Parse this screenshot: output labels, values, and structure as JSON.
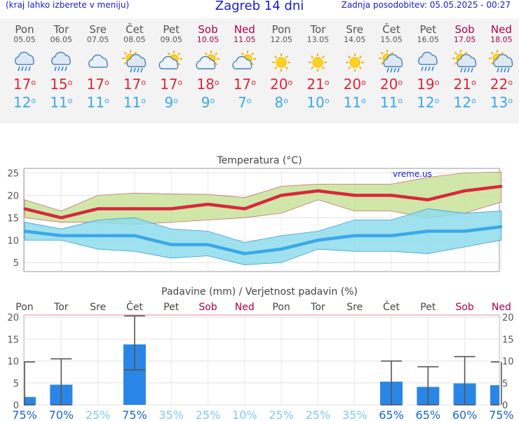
{
  "header": {
    "menu_hint": "(kraj lahko izberete v meniju)",
    "title": "Zagreb 14 dni",
    "updated": "Zadnja posodobitev: 05.05.2025 - 00:27"
  },
  "days": [
    {
      "name": "Pon",
      "date": "05.05",
      "weekend": false,
      "icon": "rain-cloud-icon",
      "max": "17",
      "min": "12"
    },
    {
      "name": "Tor",
      "date": "06.05",
      "weekend": false,
      "icon": "rain-cloud-icon",
      "max": "15",
      "min": "11"
    },
    {
      "name": "Sre",
      "date": "07.05",
      "weekend": false,
      "icon": "cloud-icon",
      "max": "17",
      "min": "11"
    },
    {
      "name": "Čet",
      "date": "08.05",
      "weekend": false,
      "icon": "sun-rain-cloud-icon",
      "max": "17",
      "min": "11"
    },
    {
      "name": "Pet",
      "date": "09.05",
      "weekend": false,
      "icon": "partly-cloudy-icon",
      "max": "17",
      "min": "9"
    },
    {
      "name": "Sob",
      "date": "10.05",
      "weekend": true,
      "icon": "partly-cloudy-icon",
      "max": "18",
      "min": "9"
    },
    {
      "name": "Ned",
      "date": "11.05",
      "weekend": true,
      "icon": "partly-cloudy-icon",
      "max": "17",
      "min": "7"
    },
    {
      "name": "Pon",
      "date": "12.05",
      "weekend": false,
      "icon": "sun-icon",
      "max": "20",
      "min": "8"
    },
    {
      "name": "Tor",
      "date": "13.05",
      "weekend": false,
      "icon": "sun-icon",
      "max": "21",
      "min": "10"
    },
    {
      "name": "Sre",
      "date": "14.05",
      "weekend": false,
      "icon": "sun-icon",
      "max": "20",
      "min": "11"
    },
    {
      "name": "Čet",
      "date": "15.05",
      "weekend": false,
      "icon": "sun-rain-cloud-icon",
      "max": "20",
      "min": "11"
    },
    {
      "name": "Pet",
      "date": "16.05",
      "weekend": false,
      "icon": "rain-cloud-icon",
      "max": "19",
      "min": "12"
    },
    {
      "name": "Sob",
      "date": "17.05",
      "weekend": true,
      "icon": "sun-rain-cloud-icon",
      "max": "21",
      "min": "12"
    },
    {
      "name": "Ned",
      "date": "18.05",
      "weekend": true,
      "icon": "sun-rain-cloud-icon",
      "max": "22",
      "min": "13"
    }
  ],
  "colors": {
    "max": "#d8283c",
    "max_band": "#c8e39a",
    "min": "#3aa8e8",
    "min_band": "#8fdcec",
    "weekend": "#b0004c",
    "bar": "#2a86e6",
    "prob_high": "#1a66cc",
    "prob_low": "#7ecbf0"
  },
  "chart_data": [
    {
      "type": "line",
      "title": "Temperatura (°C)",
      "watermark": "vreme.us",
      "x": [
        "05.05",
        "06.05",
        "07.05",
        "08.05",
        "09.05",
        "10.05",
        "11.05",
        "12.05",
        "13.05",
        "14.05",
        "15.05",
        "16.05",
        "17.05",
        "18.05"
      ],
      "ylim": [
        3,
        26
      ],
      "yticks": [
        5,
        10,
        15,
        20,
        25
      ],
      "grid": true,
      "series": [
        {
          "name": "max",
          "values": [
            17,
            15,
            17,
            17,
            17,
            18,
            17,
            20,
            21,
            20,
            20,
            19,
            21,
            22
          ],
          "band_low": [
            15,
            14,
            14,
            13.5,
            14,
            14.5,
            15,
            16,
            19,
            16.5,
            16.5,
            15,
            16,
            18.5
          ],
          "band_high": [
            19,
            16.5,
            20,
            20.5,
            20.3,
            20.2,
            19.5,
            22,
            22.5,
            22.5,
            22.5,
            24,
            25,
            25.2
          ]
        },
        {
          "name": "min",
          "values": [
            12,
            11,
            11,
            11,
            9,
            9,
            7,
            8,
            10,
            11,
            11,
            12,
            12,
            13
          ],
          "band_low": [
            10,
            10,
            8,
            7.5,
            6,
            6.5,
            4.5,
            5,
            8,
            7.5,
            7.5,
            7,
            8.5,
            10
          ],
          "band_high": [
            14,
            12.5,
            14.5,
            15,
            12.5,
            12,
            9.5,
            11,
            12,
            14.5,
            14.5,
            17,
            16,
            16.5
          ]
        }
      ]
    },
    {
      "type": "bar",
      "title": "Padavine (mm) / Verjetnost padavin (%)",
      "categories": [
        "Pon",
        "Tor",
        "Sre",
        "Čet",
        "Pet",
        "Sob",
        "Ned",
        "Pon",
        "Tor",
        "Sre",
        "Čet",
        "Pet",
        "Sob",
        "Ned"
      ],
      "weekend": [
        false,
        false,
        false,
        false,
        false,
        true,
        true,
        false,
        false,
        false,
        false,
        false,
        true,
        true
      ],
      "values": [
        1.8,
        4.6,
        0,
        13.8,
        0,
        0,
        0,
        0,
        0,
        0,
        5.3,
        4.1,
        4.9,
        4.5
      ],
      "range_low": [
        0,
        0,
        0,
        8,
        0,
        0,
        0,
        0,
        0,
        0,
        0,
        0,
        0,
        0
      ],
      "range_high": [
        9.8,
        10.5,
        0,
        20.3,
        0,
        0,
        0,
        0,
        0,
        0,
        10,
        8.7,
        11,
        9.8
      ],
      "probability": [
        "75%",
        "70%",
        "25%",
        "75%",
        "35%",
        "25%",
        "10%",
        "25%",
        "25%",
        "35%",
        "65%",
        "65%",
        "60%",
        "75%"
      ],
      "probability_values": [
        75,
        70,
        25,
        75,
        35,
        25,
        10,
        25,
        25,
        35,
        65,
        65,
        60,
        75
      ],
      "ylim": [
        0,
        20.5
      ],
      "yticks": [
        0,
        5,
        10,
        15,
        20
      ],
      "grid": true
    }
  ]
}
